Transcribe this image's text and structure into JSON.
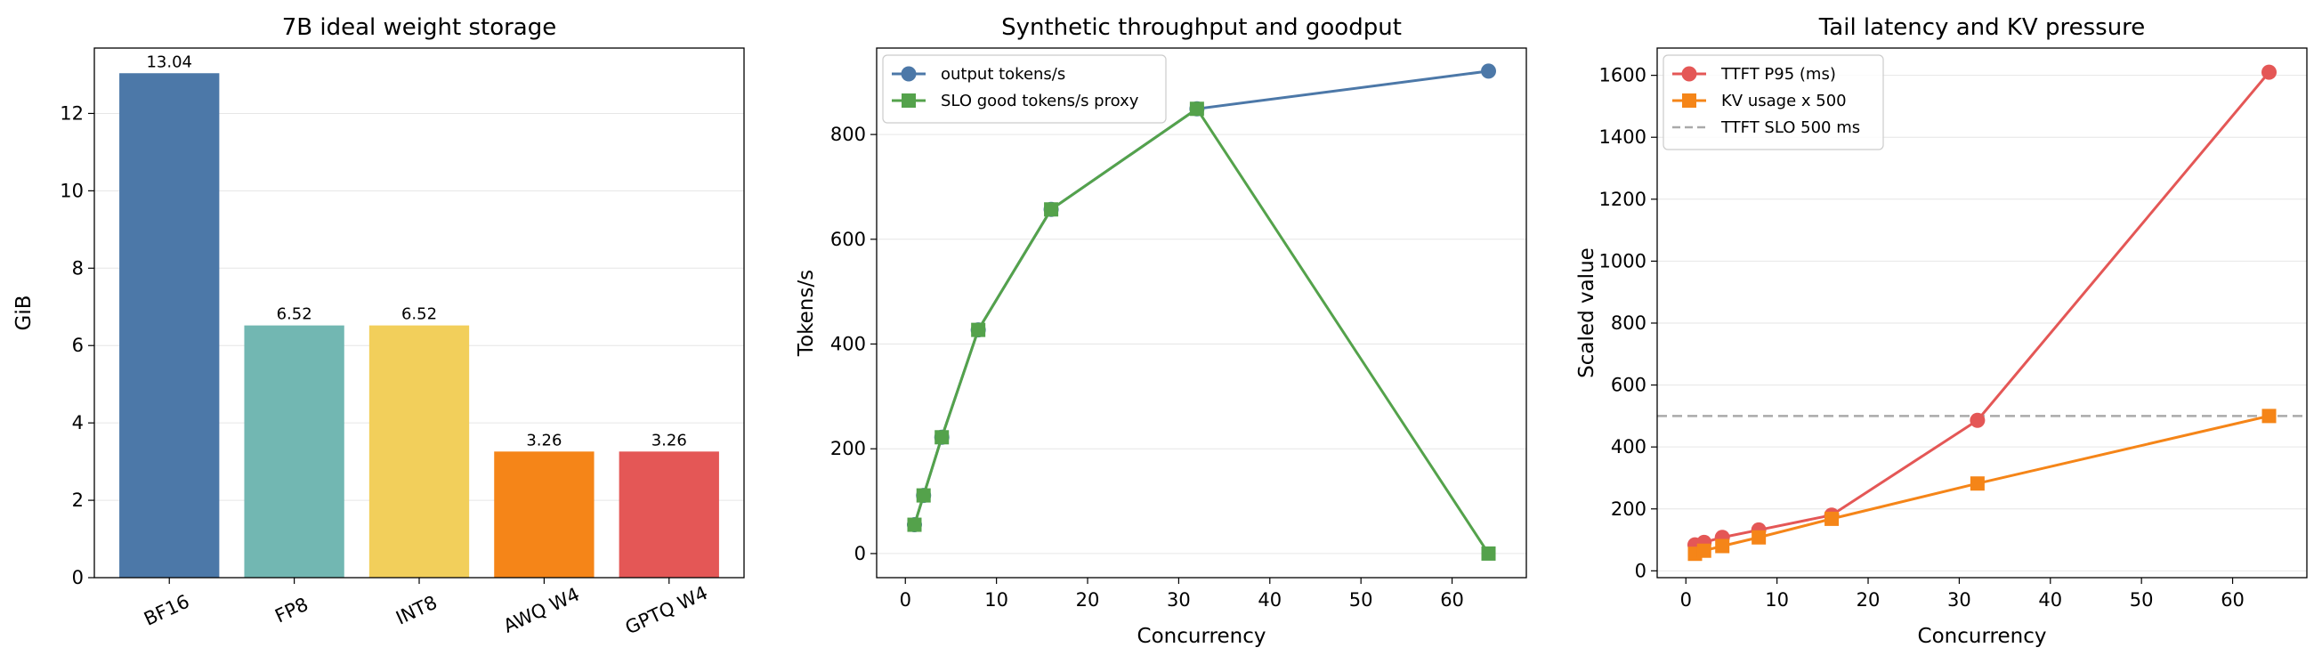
{
  "chart_data": [
    {
      "type": "bar",
      "title": "7B ideal weight storage",
      "xlabel": "",
      "ylabel": "GiB",
      "ylim": [
        0,
        13.69
      ],
      "yticks": [
        0,
        2,
        4,
        6,
        8,
        10,
        12
      ],
      "grid": "y",
      "categories": [
        "BF16",
        "FP8",
        "INT8",
        "AWQ W4",
        "GPTQ W4"
      ],
      "values": [
        13.04,
        6.52,
        6.52,
        3.26,
        3.26
      ],
      "value_labels": [
        "13.04",
        "6.52",
        "6.52",
        "3.26",
        "3.26"
      ],
      "colors": [
        "#4c78a8",
        "#72b7b2",
        "#f2cf5b",
        "#f58518",
        "#e45756"
      ]
    },
    {
      "type": "line",
      "title": "Synthetic throughput and goodput",
      "xlabel": "Concurrency",
      "ylabel": "Tokens/s",
      "xlim": [
        -3.15,
        68.15
      ],
      "ylim": [
        -46,
        965
      ],
      "xticks": [
        0,
        10,
        20,
        30,
        40,
        50,
        60
      ],
      "yticks": [
        0,
        200,
        400,
        600,
        800
      ],
      "grid": "y",
      "legend": "top-left",
      "x": [
        1,
        2,
        4,
        8,
        16,
        32,
        64
      ],
      "series": [
        {
          "name": "output tokens/s",
          "values": [
            55,
            111,
            222,
            427,
            657,
            849,
            921
          ],
          "color": "#4c78a8",
          "marker": "circle"
        },
        {
          "name": "SLO good tokens/s proxy",
          "values": [
            55,
            111,
            222,
            427,
            657,
            849,
            0
          ],
          "color": "#54a24b",
          "marker": "square"
        }
      ]
    },
    {
      "type": "line",
      "title": "Tail latency and KV pressure",
      "xlabel": "Concurrency",
      "ylabel": "Scaled value",
      "xlim": [
        -3.15,
        68.15
      ],
      "ylim": [
        -22,
        1688
      ],
      "xticks": [
        0,
        10,
        20,
        30,
        40,
        50,
        60
      ],
      "yticks": [
        0,
        200,
        400,
        600,
        800,
        1000,
        1200,
        1400,
        1600
      ],
      "grid": "y",
      "legend": "top-left",
      "x": [
        1,
        2,
        4,
        8,
        16,
        32,
        64
      ],
      "series": [
        {
          "name": "TTFT P95 (ms)",
          "values": [
            84,
            92,
            108,
            132,
            180,
            486,
            1610
          ],
          "color": "#e45756",
          "marker": "circle"
        },
        {
          "name": "KV usage x 500",
          "values": [
            55,
            65,
            80,
            108,
            168,
            282,
            500
          ],
          "color": "#f58518",
          "marker": "square"
        }
      ],
      "reference_line": {
        "name": "TTFT SLO 500 ms",
        "y": 500,
        "color": "#aaaaaa",
        "style": "dashed"
      }
    }
  ]
}
